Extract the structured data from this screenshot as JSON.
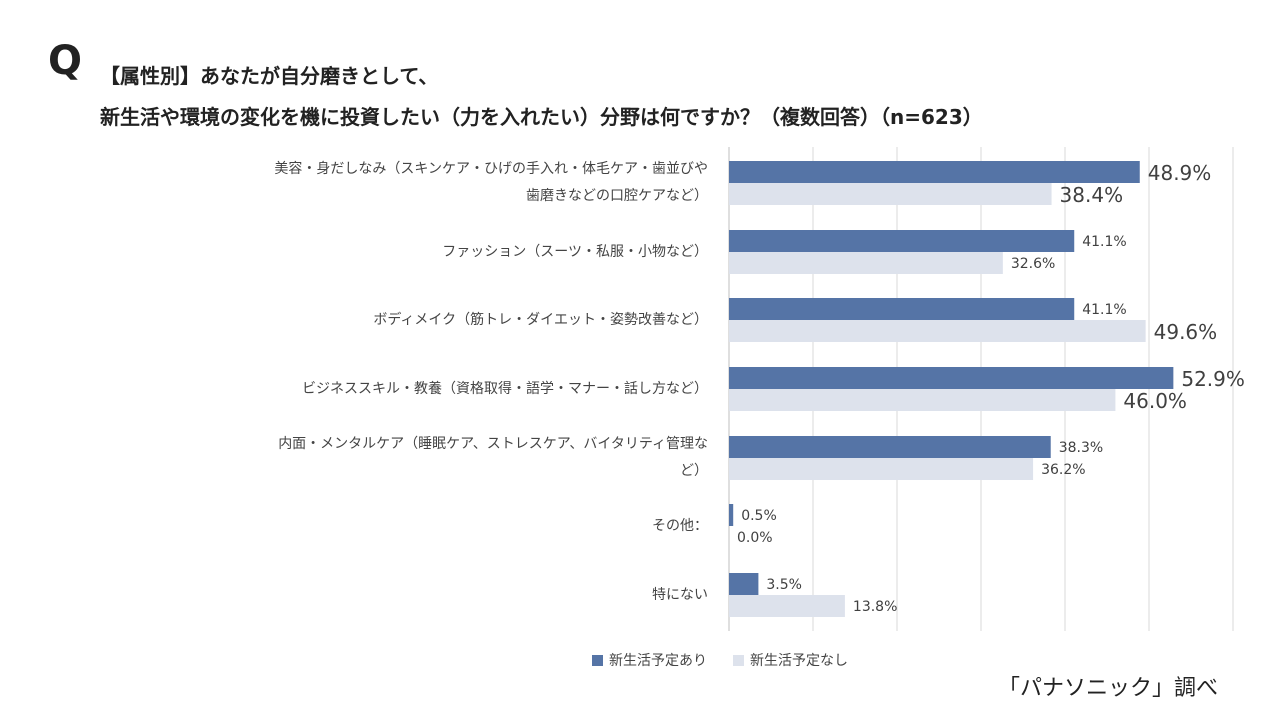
{
  "question": {
    "mark": "Q",
    "title_line1": "【属性別】あなたが自分磨きとして、",
    "title_line2": "新生活や環境の変化を機に投資したい（力を入れたい）分野は何ですか？（複数回答）（n=623）"
  },
  "chart_data": {
    "type": "bar",
    "orientation": "horizontal",
    "categories": [
      [
        "美容・身だしなみ（スキンケア・ひげの手入れ・体毛ケア・歯並びや",
        "歯磨きなどの口腔ケアなど）"
      ],
      [
        "ファッション（スーツ・私服・小物など）"
      ],
      [
        "ボディメイク（筋トレ・ダイエット・姿勢改善など）"
      ],
      [
        "ビジネススキル・教養（資格取得・語学・マナー・話し方など）"
      ],
      [
        "内面・メンタルケア（睡眠ケア、ストレスケア、バイタリティ管理な",
        "ど）"
      ],
      [
        "その他："
      ],
      [
        "特にない"
      ]
    ],
    "series": [
      {
        "name": "新生活予定あり",
        "color": "#5574a6",
        "values": [
          48.9,
          41.1,
          41.1,
          52.9,
          38.3,
          0.5,
          3.5
        ],
        "labels": [
          "48.9%",
          "41.1%",
          "41.1%",
          "52.9%",
          "38.3%",
          "0.5%",
          "3.5%"
        ]
      },
      {
        "name": "新生活予定なし",
        "color": "#dde2ec",
        "values": [
          38.4,
          32.6,
          49.6,
          46.0,
          36.2,
          0.0,
          13.8
        ],
        "labels": [
          "38.4%",
          "32.6%",
          "49.6%",
          "46.0%",
          "36.2%",
          "0.0%",
          "13.8%"
        ]
      }
    ],
    "highlighted_labels": [
      [
        0,
        0
      ],
      [
        0,
        1
      ],
      [
        2,
        1
      ],
      [
        3,
        0
      ],
      [
        3,
        1
      ]
    ],
    "xlim": [
      0,
      60
    ],
    "grid": true,
    "legend": "bottom"
  },
  "source": "「パナソニック」調べ"
}
